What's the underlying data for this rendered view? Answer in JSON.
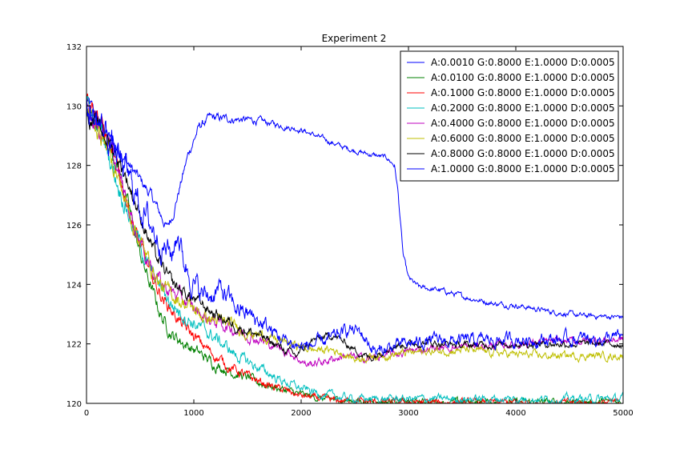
{
  "chart_data": {
    "type": "line",
    "title": "Experiment 2",
    "xlabel": "",
    "ylabel": "",
    "xlim": [
      0,
      5000
    ],
    "ylim": [
      120,
      132
    ],
    "xticks": [
      0,
      1000,
      2000,
      3000,
      4000,
      5000
    ],
    "yticks": [
      120,
      122,
      124,
      126,
      128,
      130,
      132
    ],
    "grid": false,
    "legend_position": "top-right",
    "series": [
      {
        "name": "A:0.0010 G:0.8000 E:1.0000 D:0.0005",
        "color": "#0000ff",
        "noise": 0.12,
        "points": [
          [
            0,
            130.2
          ],
          [
            200,
            129.0
          ],
          [
            400,
            128.0
          ],
          [
            600,
            127.0
          ],
          [
            750,
            125.9
          ],
          [
            800,
            126.3
          ],
          [
            850,
            127.0
          ],
          [
            950,
            128.4
          ],
          [
            1050,
            129.3
          ],
          [
            1150,
            129.6
          ],
          [
            1400,
            129.55
          ],
          [
            1600,
            129.5
          ],
          [
            1800,
            129.35
          ],
          [
            2000,
            129.2
          ],
          [
            2200,
            128.9
          ],
          [
            2400,
            128.6
          ],
          [
            2600,
            128.4
          ],
          [
            2800,
            128.25
          ],
          [
            2870,
            128.0
          ],
          [
            2900,
            127.2
          ],
          [
            2950,
            125.0
          ],
          [
            3000,
            124.2
          ],
          [
            3100,
            123.9
          ],
          [
            3300,
            123.8
          ],
          [
            3500,
            123.6
          ],
          [
            3800,
            123.35
          ],
          [
            4000,
            123.3
          ],
          [
            4300,
            123.1
          ],
          [
            4600,
            122.95
          ],
          [
            5000,
            122.9
          ]
        ]
      },
      {
        "name": "A:0.0100 G:0.8000 E:1.0000 D:0.0005",
        "color": "#008000",
        "noise": 0.15,
        "points": [
          [
            0,
            129.8
          ],
          [
            150,
            129.2
          ],
          [
            300,
            127.9
          ],
          [
            400,
            126.5
          ],
          [
            500,
            125.0
          ],
          [
            600,
            123.9
          ],
          [
            700,
            122.9
          ],
          [
            800,
            122.3
          ],
          [
            1000,
            121.8
          ],
          [
            1200,
            121.3
          ],
          [
            1400,
            121.0
          ],
          [
            1600,
            120.7
          ],
          [
            1800,
            120.5
          ],
          [
            2000,
            120.3
          ],
          [
            2200,
            120.15
          ],
          [
            2500,
            120.08
          ],
          [
            3000,
            120.05
          ],
          [
            4000,
            120.05
          ],
          [
            5000,
            120.05
          ]
        ]
      },
      {
        "name": "A:0.1000 G:0.8000 E:1.0000 D:0.0005",
        "color": "#ff0000",
        "noise": 0.15,
        "points": [
          [
            0,
            130.5
          ],
          [
            100,
            129.8
          ],
          [
            250,
            128.3
          ],
          [
            400,
            126.5
          ],
          [
            500,
            125.3
          ],
          [
            600,
            124.3
          ],
          [
            700,
            123.6
          ],
          [
            900,
            122.6
          ],
          [
            1100,
            121.9
          ],
          [
            1300,
            121.3
          ],
          [
            1500,
            120.9
          ],
          [
            1700,
            120.6
          ],
          [
            2000,
            120.25
          ],
          [
            2300,
            120.1
          ],
          [
            2700,
            120.05
          ],
          [
            3500,
            120.03
          ],
          [
            5000,
            120.03
          ]
        ]
      },
      {
        "name": "A:0.2000 G:0.8000 E:1.0000 D:0.0005",
        "color": "#00bfbf",
        "noise": 0.18,
        "points": [
          [
            0,
            130.0
          ],
          [
            150,
            129.0
          ],
          [
            300,
            127.3
          ],
          [
            450,
            125.8
          ],
          [
            600,
            124.4
          ],
          [
            800,
            123.3
          ],
          [
            1000,
            122.7
          ],
          [
            1200,
            122.2
          ],
          [
            1400,
            121.6
          ],
          [
            1600,
            121.2
          ],
          [
            1800,
            120.8
          ],
          [
            2000,
            120.5
          ],
          [
            2200,
            120.3
          ],
          [
            2500,
            120.15
          ],
          [
            3000,
            120.15
          ],
          [
            4000,
            120.15
          ],
          [
            5000,
            120.15
          ]
        ]
      },
      {
        "name": "A:0.4000 G:0.8000 E:1.0000 D:0.0005",
        "color": "#bf00bf",
        "noise": 0.18,
        "points": [
          [
            0,
            130.0
          ],
          [
            200,
            128.8
          ],
          [
            400,
            126.5
          ],
          [
            550,
            125.0
          ],
          [
            700,
            124.0
          ],
          [
            900,
            123.5
          ],
          [
            1100,
            122.9
          ],
          [
            1300,
            122.6
          ],
          [
            1500,
            122.3
          ],
          [
            1700,
            122.0
          ],
          [
            1900,
            121.7
          ],
          [
            2050,
            121.3
          ],
          [
            2200,
            121.4
          ],
          [
            2400,
            121.6
          ],
          [
            2600,
            121.5
          ],
          [
            2800,
            121.6
          ],
          [
            3000,
            121.75
          ],
          [
            3200,
            121.85
          ],
          [
            3500,
            121.9
          ],
          [
            3800,
            121.95
          ],
          [
            4200,
            122.05
          ],
          [
            4600,
            122.1
          ],
          [
            5000,
            122.15
          ]
        ]
      },
      {
        "name": "A:0.6000 G:0.8000 E:1.0000 D:0.0005",
        "color": "#bfbf00",
        "noise": 0.18,
        "points": [
          [
            0,
            129.9
          ],
          [
            200,
            128.6
          ],
          [
            400,
            126.4
          ],
          [
            550,
            125.0
          ],
          [
            700,
            123.9
          ],
          [
            900,
            123.4
          ],
          [
            1100,
            122.9
          ],
          [
            1300,
            122.7
          ],
          [
            1500,
            122.4
          ],
          [
            1700,
            122.2
          ],
          [
            1900,
            122.0
          ],
          [
            2100,
            121.8
          ],
          [
            2300,
            121.8
          ],
          [
            2500,
            121.5
          ],
          [
            2700,
            121.6
          ],
          [
            3000,
            121.7
          ],
          [
            3500,
            121.8
          ],
          [
            3800,
            121.7
          ],
          [
            4000,
            121.65
          ],
          [
            4200,
            121.6
          ],
          [
            5000,
            121.6
          ]
        ]
      },
      {
        "name": "A:0.8000 G:0.8000 E:1.0000 D:0.0005",
        "color": "#000000",
        "noise": 0.16,
        "points": [
          [
            0,
            129.7
          ],
          [
            200,
            128.9
          ],
          [
            350,
            127.8
          ],
          [
            500,
            126.3
          ],
          [
            650,
            124.9
          ],
          [
            800,
            124.0
          ],
          [
            1000,
            123.5
          ],
          [
            1200,
            123.0
          ],
          [
            1400,
            122.6
          ],
          [
            1600,
            122.3
          ],
          [
            1800,
            121.9
          ],
          [
            1950,
            121.6
          ],
          [
            2100,
            122.1
          ],
          [
            2300,
            122.3
          ],
          [
            2500,
            121.8
          ],
          [
            2650,
            121.5
          ],
          [
            2800,
            121.9
          ],
          [
            3000,
            122.0
          ],
          [
            3200,
            122.05
          ],
          [
            3500,
            121.95
          ],
          [
            4000,
            122.0
          ],
          [
            4500,
            122.0
          ],
          [
            5000,
            122.0
          ]
        ]
      },
      {
        "name": "A:1.0000 G:0.8000 E:1.0000 D:0.0005",
        "color": "#0000ff",
        "noise": 0.3,
        "points": [
          [
            0,
            129.9
          ],
          [
            200,
            129.0
          ],
          [
            400,
            127.5
          ],
          [
            550,
            126.3
          ],
          [
            700,
            125.4
          ],
          [
            800,
            125.0
          ],
          [
            850,
            125.8
          ],
          [
            900,
            124.9
          ],
          [
            1000,
            124.0
          ],
          [
            1100,
            123.6
          ],
          [
            1250,
            123.8
          ],
          [
            1400,
            123.2
          ],
          [
            1550,
            122.9
          ],
          [
            1700,
            122.5
          ],
          [
            1850,
            122.1
          ],
          [
            2000,
            121.9
          ],
          [
            2150,
            122.0
          ],
          [
            2300,
            122.2
          ],
          [
            2450,
            122.5
          ],
          [
            2550,
            122.4
          ],
          [
            2700,
            121.7
          ],
          [
            2850,
            121.9
          ],
          [
            3000,
            122.0
          ],
          [
            3200,
            122.1
          ],
          [
            3500,
            122.1
          ],
          [
            4000,
            122.15
          ],
          [
            4500,
            122.15
          ],
          [
            5000,
            122.2
          ]
        ]
      }
    ]
  }
}
